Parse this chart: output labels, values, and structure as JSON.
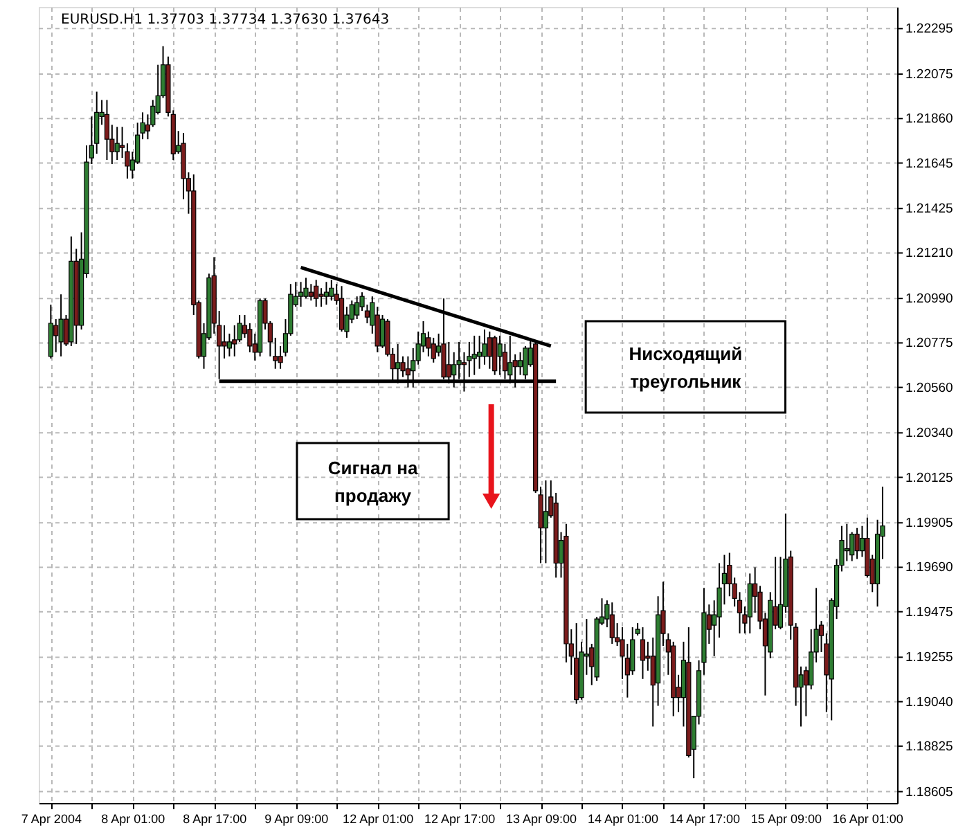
{
  "chart_data": {
    "type": "candlestick",
    "title": "EURUSD.H1 1.37703 1.37734 1.37630 1.37643",
    "categories": [
      "7 Apr 2004",
      null,
      null,
      null,
      null,
      null,
      null,
      null,
      null,
      null,
      null,
      null,
      null,
      null,
      null,
      null,
      "8 Apr 01:00",
      null,
      null,
      null,
      null,
      null,
      null,
      null,
      null,
      null,
      null,
      null,
      null,
      null,
      null,
      null,
      "8 Apr 17:00",
      null,
      null,
      null,
      null,
      null,
      null,
      null,
      null,
      null,
      null,
      null,
      null,
      null,
      null,
      null,
      "9 Apr 09:00",
      null,
      null,
      null,
      null,
      null,
      null,
      null,
      null,
      null,
      null,
      null,
      null,
      null,
      null,
      null,
      "12 Apr 01:00",
      null,
      null,
      null,
      null,
      null,
      null,
      null,
      null,
      null,
      null,
      null,
      null,
      null,
      null,
      null,
      "12 Apr 17:00",
      null,
      null,
      null,
      null,
      null,
      null,
      null,
      null,
      null,
      null,
      null,
      null,
      null,
      null,
      null,
      "13 Apr 09:00",
      null,
      null,
      null,
      null,
      null,
      null,
      null,
      null,
      null,
      null,
      null,
      null,
      null,
      null,
      null,
      "14 Apr 01:00",
      null,
      null,
      null,
      null,
      null,
      null,
      null,
      null,
      null,
      null,
      null,
      null,
      null,
      null,
      null,
      "14 Apr 17:00",
      null,
      null,
      null,
      null,
      null,
      null,
      null,
      null,
      null,
      null,
      null,
      null,
      null,
      null,
      null,
      "15 Apr 09:00",
      null,
      null,
      null,
      null,
      null,
      null,
      null,
      null,
      null,
      null,
      null,
      null,
      null,
      null,
      null,
      "16 Apr 01:00",
      null,
      null,
      null
    ],
    "ohlc": [
      [
        1.2071,
        1.2096,
        1.207,
        1.2087
      ],
      [
        1.2086,
        1.2089,
        1.2073,
        1.2081
      ],
      [
        1.2078,
        1.2101,
        1.2071,
        1.2089
      ],
      [
        1.2089,
        1.2091,
        1.2076,
        1.2077
      ],
      [
        1.2078,
        1.2129,
        1.2076,
        1.2117
      ],
      [
        1.2117,
        1.2123,
        1.2077,
        1.2086
      ],
      [
        1.2086,
        1.2131,
        1.2084,
        1.2118
      ],
      [
        1.2111,
        1.2173,
        1.2109,
        1.2165
      ],
      [
        1.2167,
        1.2187,
        1.2164,
        1.2173
      ],
      [
        1.2174,
        1.2199,
        1.2169,
        1.2189
      ],
      [
        1.2187,
        1.2195,
        1.2183,
        1.2189
      ],
      [
        1.2188,
        1.2195,
        1.2166,
        1.2176
      ],
      [
        1.2176,
        1.2183,
        1.2164,
        1.217
      ],
      [
        1.217,
        1.2182,
        1.2166,
        1.2174
      ],
      [
        1.2173,
        1.2182,
        1.2167,
        1.2172
      ],
      [
        1.217,
        1.2174,
        1.2157,
        1.2163
      ],
      [
        1.2161,
        1.217,
        1.2157,
        1.2166
      ],
      [
        1.2165,
        1.2184,
        1.2164,
        1.2178
      ],
      [
        1.2179,
        1.2189,
        1.2176,
        1.2184
      ],
      [
        1.2183,
        1.2188,
        1.2176,
        1.218
      ],
      [
        1.2183,
        1.2195,
        1.2182,
        1.2192
      ],
      [
        1.2189,
        1.2212,
        1.2188,
        1.2197
      ],
      [
        1.2197,
        1.2221,
        1.2196,
        1.2212
      ],
      [
        1.2212,
        1.2216,
        1.2187,
        1.2189
      ],
      [
        1.2188,
        1.219,
        1.2166,
        1.2169
      ],
      [
        1.217,
        1.218,
        1.2169,
        1.2173
      ],
      [
        1.2174,
        1.2179,
        1.2147,
        1.2157
      ],
      [
        1.2157,
        1.216,
        1.214,
        1.2151
      ],
      [
        1.2151,
        1.2159,
        1.2091,
        1.2096
      ],
      [
        1.2097,
        1.2098,
        1.207,
        1.2071
      ],
      [
        1.2071,
        1.2087,
        1.2065,
        1.2082
      ],
      [
        1.208,
        1.2111,
        1.2079,
        1.2109
      ],
      [
        1.211,
        1.2119,
        1.2082,
        1.2087
      ],
      [
        1.2086,
        1.2093,
        1.206,
        1.2076
      ],
      [
        1.2078,
        1.2086,
        1.207,
        1.2076
      ],
      [
        1.2075,
        1.2082,
        1.2071,
        1.2078
      ],
      [
        1.2079,
        1.2086,
        1.2071,
        1.2077
      ],
      [
        1.2079,
        1.2091,
        1.2078,
        1.2087
      ],
      [
        1.2086,
        1.2091,
        1.208,
        1.2082
      ],
      [
        1.2084,
        1.2087,
        1.2073,
        1.2076
      ],
      [
        1.2077,
        1.2082,
        1.2069,
        1.2073
      ],
      [
        1.2073,
        1.2099,
        1.2071,
        1.2098
      ],
      [
        1.2098,
        1.2099,
        1.2084,
        1.2087
      ],
      [
        1.2087,
        1.2088,
        1.2071,
        1.2078
      ],
      [
        1.2071,
        1.208,
        1.2065,
        1.2069
      ],
      [
        1.2071,
        1.2076,
        1.2065,
        1.2068
      ],
      [
        1.2073,
        1.2089,
        1.2071,
        1.2082
      ],
      [
        1.2082,
        1.2106,
        1.2081,
        1.2101
      ],
      [
        1.2096,
        1.2107,
        1.2095,
        1.21
      ],
      [
        1.21,
        1.2107,
        1.2095,
        1.2102
      ],
      [
        1.21,
        1.2109,
        1.2099,
        1.2104
      ],
      [
        1.2102,
        1.2106,
        1.2098,
        1.21
      ],
      [
        1.2105,
        1.2108,
        1.2095,
        1.2099
      ],
      [
        1.2101,
        1.2104,
        1.2095,
        1.21
      ],
      [
        1.21,
        1.2107,
        1.2096,
        1.2102
      ],
      [
        1.21,
        1.2108,
        1.2098,
        1.2104
      ],
      [
        1.2101,
        1.2106,
        1.2096,
        1.2098
      ],
      [
        1.2099,
        1.2105,
        1.2083,
        1.2084
      ],
      [
        1.2083,
        1.2095,
        1.208,
        1.2091
      ],
      [
        1.2089,
        1.2098,
        1.2087,
        1.2096
      ],
      [
        1.2091,
        1.21,
        1.2089,
        1.2097
      ],
      [
        1.2095,
        1.2102,
        1.2093,
        1.21
      ],
      [
        1.2093,
        1.2096,
        1.2087,
        1.209
      ],
      [
        1.2086,
        1.21,
        1.2082,
        1.2097
      ],
      [
        1.2091,
        1.2095,
        1.2073,
        1.2076
      ],
      [
        1.2076,
        1.2091,
        1.2075,
        1.2089
      ],
      [
        1.2088,
        1.2089,
        1.2071,
        1.2072
      ],
      [
        1.2072,
        1.2075,
        1.2059,
        1.2065
      ],
      [
        1.2065,
        1.2077,
        1.2058,
        1.2068
      ],
      [
        1.2068,
        1.2071,
        1.2061,
        1.2064
      ],
      [
        1.2065,
        1.2071,
        1.2056,
        1.2062
      ],
      [
        1.2064,
        1.2075,
        1.2056,
        1.2069
      ],
      [
        1.2069,
        1.2083,
        1.2067,
        1.2077
      ],
      [
        1.2076,
        1.2088,
        1.2073,
        1.2082
      ],
      [
        1.208,
        1.2083,
        1.2071,
        1.2075
      ],
      [
        1.2077,
        1.208,
        1.2068,
        1.207
      ],
      [
        1.2073,
        1.2082,
        1.2071,
        1.2076
      ],
      [
        1.2077,
        1.2099,
        1.206,
        1.2061
      ],
      [
        1.2067,
        1.2078,
        1.2058,
        1.2061
      ],
      [
        1.2062,
        1.2073,
        1.2056,
        1.2067
      ],
      [
        1.2067,
        1.2078,
        1.206,
        1.2069
      ],
      [
        1.2068,
        1.2073,
        1.2054,
        1.2067
      ],
      [
        1.2069,
        1.2078,
        1.2061,
        1.2071
      ],
      [
        1.207,
        1.2081,
        1.2062,
        1.2072
      ],
      [
        1.2071,
        1.2081,
        1.2065,
        1.2073
      ],
      [
        1.2071,
        1.2084,
        1.2067,
        1.2077
      ],
      [
        1.208,
        1.2083,
        1.2065,
        1.2071
      ],
      [
        1.208,
        1.2081,
        1.2062,
        1.2064
      ],
      [
        1.2071,
        1.2081,
        1.2062,
        1.2077
      ],
      [
        1.2073,
        1.2077,
        1.206,
        1.2064
      ],
      [
        1.2062,
        1.2081,
        1.2058,
        1.2068
      ],
      [
        1.2069,
        1.2072,
        1.2056,
        1.2066
      ],
      [
        1.2066,
        1.2073,
        1.2062,
        1.2069
      ],
      [
        1.2062,
        1.2076,
        1.206,
        1.2075
      ],
      [
        1.2067,
        1.208,
        1.2066,
        1.2075
      ],
      [
        1.2077,
        1.2078,
        1.2005,
        1.2006
      ],
      [
        1.2004,
        1.2008,
        1.1971,
        1.1988
      ],
      [
        1.1988,
        1.2011,
        1.1971,
        1.1996
      ],
      [
        1.2003,
        1.2011,
        1.1993,
        1.1994
      ],
      [
        1.2,
        1.2005,
        1.1964,
        1.1971
      ],
      [
        1.1971,
        1.1986,
        1.1964,
        1.1982
      ],
      [
        1.1984,
        1.199,
        1.1923,
        1.1932
      ],
      [
        1.1932,
        1.1939,
        1.1917,
        1.1926
      ],
      [
        1.1925,
        1.1942,
        1.1903,
        1.1905
      ],
      [
        1.1906,
        1.1933,
        1.1905,
        1.1928
      ],
      [
        1.1926,
        1.1944,
        1.1917,
        1.1927
      ],
      [
        1.193,
        1.1932,
        1.1912,
        1.1921
      ],
      [
        1.1916,
        1.1945,
        1.1914,
        1.1944
      ],
      [
        1.1942,
        1.1954,
        1.1941,
        1.1945
      ],
      [
        1.1944,
        1.1953,
        1.194,
        1.1951
      ],
      [
        1.1946,
        1.1952,
        1.1932,
        1.1935
      ],
      [
        1.1935,
        1.1942,
        1.1931,
        1.1933
      ],
      [
        1.1934,
        1.194,
        1.1915,
        1.1926
      ],
      [
        1.1925,
        1.1932,
        1.1906,
        1.1917
      ],
      [
        1.1919,
        1.194,
        1.1917,
        1.1934
      ],
      [
        1.1937,
        1.1942,
        1.1936,
        1.1939
      ],
      [
        1.1934,
        1.194,
        1.1915,
        1.1924
      ],
      [
        1.1926,
        1.1933,
        1.1919,
        1.1925
      ],
      [
        1.1926,
        1.1935,
        1.1892,
        1.1912
      ],
      [
        1.1913,
        1.1955,
        1.1902,
        1.1946
      ],
      [
        1.1948,
        1.1962,
        1.1931,
        1.1937
      ],
      [
        1.1934,
        1.1937,
        1.1917,
        1.1928
      ],
      [
        1.1931,
        1.1933,
        1.1897,
        1.1906
      ],
      [
        1.1911,
        1.1917,
        1.1899,
        1.1906
      ],
      [
        1.1906,
        1.1933,
        1.1892,
        1.1924
      ],
      [
        1.1923,
        1.194,
        1.1877,
        1.1878
      ],
      [
        1.1881,
        1.1897,
        1.1867,
        1.1897
      ],
      [
        1.1897,
        1.1924,
        1.1893,
        1.1919
      ],
      [
        1.1923,
        1.1959,
        1.1917,
        1.1947
      ],
      [
        1.1946,
        1.1951,
        1.1932,
        1.1939
      ],
      [
        1.1941,
        1.1953,
        1.1926,
        1.1946
      ],
      [
        1.1945,
        1.1971,
        1.1935,
        1.1959
      ],
      [
        1.1961,
        1.1975,
        1.1951,
        1.1966
      ],
      [
        1.197,
        1.1976,
        1.1955,
        1.1961
      ],
      [
        1.1961,
        1.1964,
        1.195,
        1.1954
      ],
      [
        1.1953,
        1.1957,
        1.1937,
        1.1947
      ],
      [
        1.1946,
        1.195,
        1.1937,
        1.1942
      ],
      [
        1.1945,
        1.1966,
        1.1937,
        1.1961
      ],
      [
        1.1961,
        1.1969,
        1.1947,
        1.1955
      ],
      [
        1.1957,
        1.196,
        1.1939,
        1.1943
      ],
      [
        1.1944,
        1.1947,
        1.1907,
        1.1931
      ],
      [
        1.1928,
        1.1957,
        1.1925,
        1.1953
      ],
      [
        1.195,
        1.1974,
        1.1939,
        1.1941
      ],
      [
        1.194,
        1.1974,
        1.1939,
        1.1951
      ],
      [
        1.195,
        1.1995,
        1.1947,
        1.1973
      ],
      [
        1.1974,
        1.1977,
        1.1934,
        1.1941
      ],
      [
        1.194,
        1.1942,
        1.1902,
        1.1911
      ],
      [
        1.1911,
        1.1921,
        1.1892,
        1.1917
      ],
      [
        1.1919,
        1.1921,
        1.1897,
        1.1912
      ],
      [
        1.1912,
        1.1939,
        1.191,
        1.1928
      ],
      [
        1.1928,
        1.1959,
        1.1923,
        1.1939
      ],
      [
        1.1941,
        1.1943,
        1.1928,
        1.1936
      ],
      [
        1.1932,
        1.1937,
        1.1899,
        1.1917
      ],
      [
        1.1915,
        1.1954,
        1.1895,
        1.1953
      ],
      [
        1.195,
        1.1973,
        1.1944,
        1.197
      ],
      [
        1.197,
        1.1989,
        1.1967,
        1.1982
      ],
      [
        1.1977,
        1.199,
        1.1972,
        1.1978
      ],
      [
        1.1975,
        1.1986,
        1.1972,
        1.1985
      ],
      [
        1.1985,
        1.1988,
        1.1973,
        1.1977
      ],
      [
        1.1977,
        1.1989,
        1.1974,
        1.1983
      ],
      [
        1.1983,
        1.1993,
        1.1964,
        1.1965
      ],
      [
        1.1973,
        1.1975,
        1.1957,
        1.1961
      ],
      [
        1.1961,
        1.1992,
        1.195,
        1.1985
      ],
      [
        1.1984,
        1.2008,
        1.1973,
        1.1989
      ]
    ],
    "colors": [
      "#2e7d32",
      "#7b1c1c",
      "#2e7d32",
      "#7b1c1c",
      "#2e7d32",
      "#7b1c1c",
      "#2e7d32",
      "#2e7d32",
      "#2e7d32",
      "#2e7d32",
      "#2e7d32",
      "#7b1c1c",
      "#7b1c1c",
      "#2e7d32",
      "#7b1c1c",
      "#7b1c1c",
      "#2e7d32",
      "#2e7d32",
      "#2e7d32",
      "#7b1c1c",
      "#2e7d32",
      "#2e7d32",
      "#2e7d32",
      "#7b1c1c",
      "#7b1c1c",
      "#2e7d32",
      "#7b1c1c",
      "#7b1c1c",
      "#7b1c1c",
      "#7b1c1c",
      "#2e7d32",
      "#2e7d32",
      "#7b1c1c",
      "#7b1c1c",
      "#7b1c1c",
      "#2e7d32",
      "#7b1c1c",
      "#2e7d32",
      "#7b1c1c",
      "#7b1c1c",
      "#7b1c1c",
      "#2e7d32",
      "#7b1c1c",
      "#7b1c1c",
      "#7b1c1c",
      "#7b1c1c",
      "#2e7d32",
      "#2e7d32",
      "#2e7d32",
      "#2e7d32",
      "#2e7d32",
      "#7b1c1c",
      "#7b1c1c",
      "#7b1c1c",
      "#2e7d32",
      "#2e7d32",
      "#7b1c1c",
      "#7b1c1c",
      "#2e7d32",
      "#2e7d32",
      "#2e7d32",
      "#2e7d32",
      "#7b1c1c",
      "#2e7d32",
      "#7b1c1c",
      "#2e7d32",
      "#7b1c1c",
      "#7b1c1c",
      "#2e7d32",
      "#7b1c1c",
      "#7b1c1c",
      "#2e7d32",
      "#2e7d32",
      "#2e7d32",
      "#7b1c1c",
      "#7b1c1c",
      "#2e7d32",
      "#7b1c1c",
      "#7b1c1c",
      "#2e7d32",
      "#2e7d32",
      "#7b1c1c",
      "#2e7d32",
      "#2e7d32",
      "#2e7d32",
      "#2e7d32",
      "#7b1c1c",
      "#7b1c1c",
      "#2e7d32",
      "#7b1c1c",
      "#2e7d32",
      "#7b1c1c",
      "#2e7d32",
      "#2e7d32",
      "#2e7d32",
      "#7b1c1c",
      "#7b1c1c",
      "#2e7d32",
      "#7b1c1c",
      "#7b1c1c",
      "#2e7d32",
      "#7b1c1c",
      "#7b1c1c",
      "#7b1c1c",
      "#2e7d32",
      "#2e7d32",
      "#7b1c1c",
      "#2e7d32",
      "#2e7d32",
      "#2e7d32",
      "#7b1c1c",
      "#7b1c1c",
      "#7b1c1c",
      "#7b1c1c",
      "#2e7d32",
      "#2e7d32",
      "#7b1c1c",
      "#7b1c1c",
      "#7b1c1c",
      "#2e7d32",
      "#7b1c1c",
      "#7b1c1c",
      "#7b1c1c",
      "#7b1c1c",
      "#2e7d32",
      "#7b1c1c",
      "#2e7d32",
      "#2e7d32",
      "#2e7d32",
      "#7b1c1c",
      "#2e7d32",
      "#2e7d32",
      "#2e7d32",
      "#7b1c1c",
      "#7b1c1c",
      "#7b1c1c",
      "#7b1c1c",
      "#2e7d32",
      "#7b1c1c",
      "#7b1c1c",
      "#7b1c1c",
      "#2e7d32",
      "#7b1c1c",
      "#2e7d32",
      "#2e7d32",
      "#7b1c1c",
      "#7b1c1c",
      "#2e7d32",
      "#7b1c1c",
      "#2e7d32",
      "#2e7d32",
      "#7b1c1c",
      "#7b1c1c",
      "#2e7d32",
      "#2e7d32",
      "#2e7d32",
      "#2e7d32",
      "#2e7d32",
      "#7b1c1c",
      "#2e7d32",
      "#7b1c1c",
      "#7b1c1c",
      "#2e7d32",
      "#2e7d32"
    ],
    "series": [
      {
        "type": "line",
        "color": "#000000",
        "values": [
          null,
          null,
          null,
          null,
          null,
          null,
          null,
          null,
          null,
          null,
          null,
          null,
          null,
          null,
          null,
          null,
          null,
          null,
          null,
          null,
          null,
          null,
          null,
          null,
          null,
          null,
          null,
          null,
          null,
          null,
          null,
          null,
          null,
          null,
          null,
          null,
          null,
          null,
          null,
          null,
          null,
          null,
          null,
          null,
          null,
          null,
          null,
          null,
          null,
          1.2114,
          null,
          null,
          null,
          null,
          null,
          null,
          null,
          null,
          null,
          null,
          null,
          null,
          null,
          null,
          null,
          null,
          null,
          null,
          null,
          null,
          null,
          null,
          null,
          null,
          null,
          null,
          null,
          null,
          null,
          null,
          null,
          null,
          null,
          null,
          null,
          null,
          null,
          null,
          null,
          null,
          null,
          null,
          null,
          null,
          null,
          null,
          null,
          null,
          1.2076,
          null,
          null,
          null,
          null,
          null,
          null,
          null,
          null,
          null,
          null,
          null,
          null,
          null,
          null,
          null,
          null,
          null,
          null,
          null,
          null,
          null,
          null,
          null,
          null,
          null,
          null,
          null,
          null,
          null,
          null,
          null,
          null,
          null,
          null,
          null,
          null,
          null,
          null,
          null,
          null,
          null,
          null,
          null,
          null,
          null,
          null,
          null,
          null,
          null,
          null,
          null,
          null,
          null,
          null,
          null,
          null,
          null,
          null,
          null,
          null,
          null,
          null,
          null,
          null,
          null
        ]
      },
      {
        "type": "line",
        "color": "#000000",
        "values": [
          null,
          null,
          null,
          null,
          null,
          null,
          null,
          null,
          null,
          null,
          null,
          null,
          null,
          null,
          null,
          null,
          null,
          null,
          null,
          null,
          null,
          null,
          null,
          null,
          null,
          null,
          null,
          null,
          null,
          null,
          null,
          null,
          null,
          1.2059,
          null,
          null,
          null,
          null,
          null,
          null,
          null,
          null,
          null,
          null,
          null,
          null,
          null,
          null,
          null,
          null,
          null,
          null,
          null,
          null,
          null,
          null,
          null,
          null,
          null,
          null,
          null,
          null,
          null,
          null,
          null,
          null,
          null,
          null,
          null,
          null,
          null,
          null,
          null,
          null,
          null,
          null,
          null,
          null,
          null,
          null,
          null,
          null,
          null,
          null,
          null,
          null,
          null,
          null,
          null,
          null,
          null,
          null,
          null,
          null,
          null,
          null,
          null,
          null,
          null,
          1.2059,
          null,
          null,
          null,
          null,
          null,
          null,
          null,
          null,
          null,
          null,
          null,
          null,
          null,
          null,
          null,
          null,
          null,
          null,
          null,
          null,
          null,
          null,
          null,
          null,
          null,
          null,
          null,
          null,
          null,
          null,
          null,
          null,
          null,
          null,
          null,
          null,
          null,
          null,
          null,
          null,
          null,
          null,
          null,
          null,
          null,
          null,
          null,
          null,
          null,
          null,
          null,
          null,
          null,
          null,
          null,
          null,
          null,
          null,
          null,
          null,
          null,
          null,
          null,
          null
        ]
      }
    ],
    "ylim": [
      1.1855,
      1.224
    ],
    "yticks": [
      1.22295,
      1.22075,
      {
        "value": 1.2186,
        "label": "1.21860"
      },
      1.21645,
      1.21425,
      {
        "value": 1.2121,
        "label": "1.21210"
      },
      {
        "value": 1.2099,
        "label": "1.20990"
      },
      1.20775,
      {
        "value": 1.2056,
        "label": "1.20560"
      },
      {
        "value": 1.2034,
        "label": "1.20340"
      },
      1.20125,
      1.19905,
      {
        "value": 1.1969,
        "label": "1.19690"
      },
      1.19475,
      1.19255,
      {
        "value": 1.1904,
        "label": "1.19040"
      },
      1.18825,
      1.18605
    ],
    "grid": true,
    "line_style": "solid",
    "annotations": [
      "Нисходящий треугольник",
      "Сигнал на продажу"
    ]
  }
}
